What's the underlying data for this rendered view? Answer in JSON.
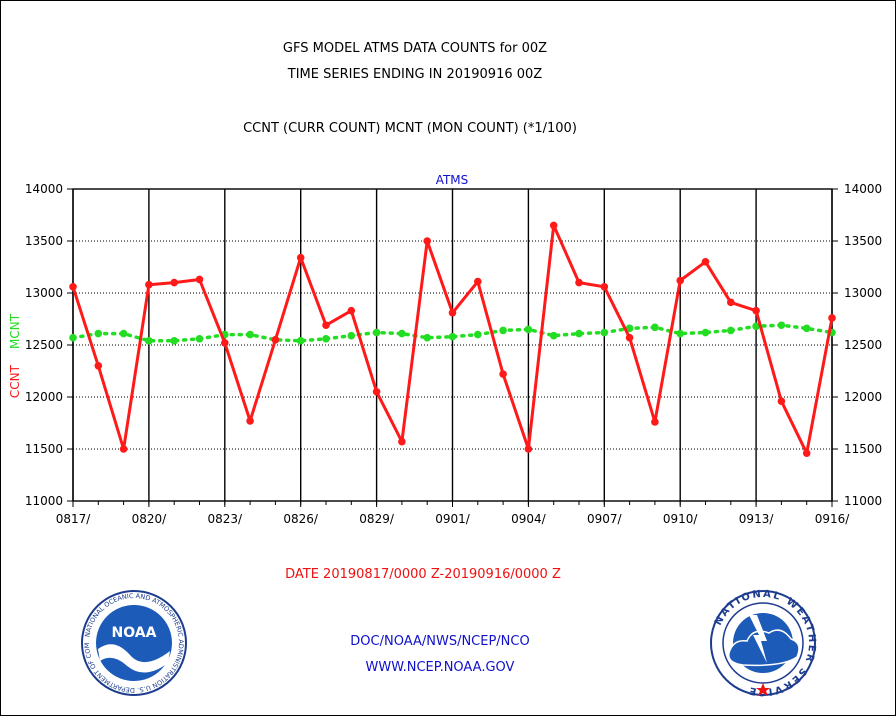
{
  "title_line1": "GFS MODEL ATMS DATA COUNTS for 00Z",
  "title_line2": "TIME SERIES ENDING IN 20190916 00Z",
  "subtitle": "CCNT (CURR COUNT) MCNT (MON COUNT) (*1/100)",
  "footer_date": "DATE 20190817/0000 Z-20190916/0000 Z",
  "footer_org": "DOC/NOAA/NWS/NCEP/NCO",
  "footer_url": "WWW.NCEP.NOAA.GOV",
  "logos": {
    "noaa": {
      "center_text": "NOAA",
      "ring_text": "NATIONAL OCEANIC AND ATMOSPHERIC ADMINISTRATION U.S. DEPARTMENT OF COMMERCE"
    },
    "nws": {
      "ring_text": "NATIONAL WEATHER SERVICE"
    }
  },
  "colors": {
    "ccnt": "#ff1a1a",
    "mcnt": "#22dd22",
    "title": "#000000",
    "chart_title": "#1010cc",
    "footer_date": "#ee1111",
    "footer_link": "#1010cc",
    "grid": "#000000",
    "frame": "#000000"
  },
  "chart_data": {
    "type": "line",
    "title": "ATMS",
    "ylabel_series": [
      "CCNT",
      "MCNT"
    ],
    "ylim": [
      11000,
      14000
    ],
    "yticks": [
      11000,
      11500,
      12000,
      12500,
      13000,
      13500,
      14000
    ],
    "xlim": [
      0,
      30
    ],
    "xticks": [
      {
        "day": 0,
        "label": "0817/"
      },
      {
        "day": 3,
        "label": "0820/"
      },
      {
        "day": 6,
        "label": "0823/"
      },
      {
        "day": 9,
        "label": "0826/"
      },
      {
        "day": 12,
        "label": "0829/"
      },
      {
        "day": 15,
        "label": "0901/"
      },
      {
        "day": 18,
        "label": "0904/"
      },
      {
        "day": 21,
        "label": "0907/"
      },
      {
        "day": 24,
        "label": "0910/"
      },
      {
        "day": 27,
        "label": "0913/"
      },
      {
        "day": 30,
        "label": "0916/"
      }
    ],
    "grid": true,
    "series": [
      {
        "name": "CCNT",
        "color": "#ff1a1a",
        "style": "solid",
        "x": [
          0,
          1,
          2,
          3,
          4,
          5,
          6,
          7,
          8,
          9,
          10,
          11,
          12,
          13,
          14,
          15,
          16,
          17,
          18,
          19,
          20,
          21,
          22,
          23,
          24,
          25,
          26,
          27,
          28,
          29,
          30
        ],
        "values": [
          13060,
          12300,
          11500,
          13080,
          13100,
          13130,
          12520,
          11770,
          12550,
          13340,
          12690,
          12830,
          12050,
          11570,
          13500,
          12810,
          13110,
          12220,
          11500,
          13650,
          13100,
          13060,
          12570,
          11760,
          13120,
          13300,
          12910,
          12830,
          11960,
          11460,
          12760
        ]
      },
      {
        "name": "MCNT",
        "color": "#22dd22",
        "style": "dashed",
        "x": [
          0,
          1,
          2,
          3,
          4,
          5,
          6,
          7,
          8,
          9,
          10,
          11,
          12,
          13,
          14,
          15,
          16,
          17,
          18,
          19,
          20,
          21,
          22,
          23,
          24,
          25,
          26,
          27,
          28,
          29,
          30
        ],
        "values": [
          12570,
          12610,
          12610,
          12540,
          12540,
          12560,
          12600,
          12600,
          12550,
          12540,
          12560,
          12590,
          12620,
          12610,
          12570,
          12580,
          12600,
          12640,
          12650,
          12590,
          12610,
          12620,
          12660,
          12670,
          12610,
          12620,
          12640,
          12680,
          12690,
          12660,
          12620
        ]
      }
    ]
  }
}
